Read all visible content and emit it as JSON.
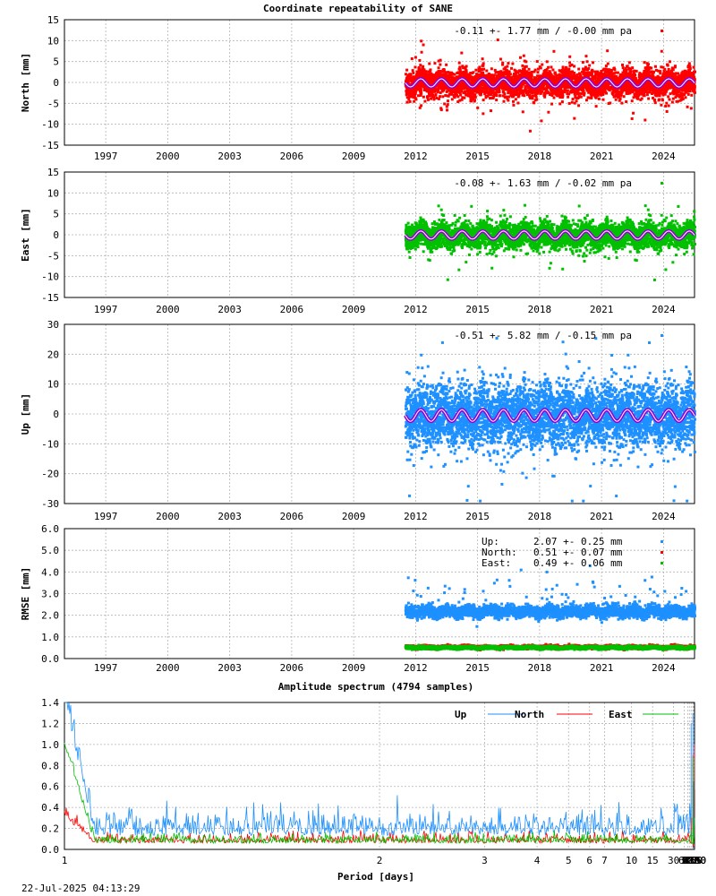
{
  "title": "Coordinate repeatability of SANE",
  "footer_timestamp": "22-Jul-2025 04:13:29",
  "colors": {
    "north": "#ff0000",
    "east": "#00c000",
    "up": "#1e90ff",
    "model": "#9400d3",
    "grid": "#b4b4b4"
  },
  "chart_data": [
    {
      "id": "north",
      "type": "scatter",
      "ylabel": "North [mm]",
      "annotation": "-0.11 +- 1.77 mm / -0.00 mm pa",
      "xlim": [
        1995,
        2025.5
      ],
      "x_ticks": [
        1997,
        2000,
        2003,
        2006,
        2009,
        2012,
        2015,
        2018,
        2021,
        2024
      ],
      "ylim": [
        -15,
        15
      ],
      "y_ticks": [
        -15,
        -10,
        -5,
        0,
        5,
        10,
        15
      ],
      "data_start": 2011.5,
      "data_end": 2025.5,
      "mean": -0.11,
      "spread": 1.77,
      "annual_amplitude": 0.8,
      "grid": true
    },
    {
      "id": "east",
      "type": "scatter",
      "ylabel": "East [mm]",
      "annotation": "-0.08 +- 1.63 mm / -0.02 mm pa",
      "xlim": [
        1995,
        2025.5
      ],
      "x_ticks": [
        1997,
        2000,
        2003,
        2006,
        2009,
        2012,
        2015,
        2018,
        2021,
        2024
      ],
      "ylim": [
        -15,
        15
      ],
      "y_ticks": [
        -15,
        -10,
        -5,
        0,
        5,
        10,
        15
      ],
      "data_start": 2011.5,
      "data_end": 2025.5,
      "mean": -0.08,
      "spread": 1.63,
      "annual_amplitude": 0.8,
      "grid": true
    },
    {
      "id": "up",
      "type": "scatter",
      "ylabel": "Up [mm]",
      "annotation": "-0.51 +- 5.82 mm / -0.15 mm pa",
      "xlim": [
        1995,
        2025.5
      ],
      "x_ticks": [
        1997,
        2000,
        2003,
        2006,
        2009,
        2012,
        2015,
        2018,
        2021,
        2024
      ],
      "ylim": [
        -30,
        30
      ],
      "y_ticks": [
        -30,
        -20,
        -10,
        0,
        10,
        20,
        30
      ],
      "data_start": 2011.5,
      "data_end": 2025.5,
      "mean": -0.51,
      "spread": 5.82,
      "annual_amplitude": 1.6,
      "grid": true
    },
    {
      "id": "rmse",
      "type": "scatter",
      "ylabel": "RMSE [mm]",
      "xlim": [
        1995,
        2025.5
      ],
      "x_ticks": [
        1997,
        2000,
        2003,
        2006,
        2009,
        2012,
        2015,
        2018,
        2021,
        2024
      ],
      "ylim": [
        0,
        6
      ],
      "y_ticks": [
        "0.0",
        "1.0",
        "2.0",
        "3.0",
        "4.0",
        "5.0",
        "6.0"
      ],
      "legend": [
        {
          "name": "Up:",
          "value": "2.07 +- 0.25 mm",
          "mean": 2.07,
          "spread": 0.25
        },
        {
          "name": "North:",
          "value": "0.51 +- 0.07 mm",
          "mean": 0.51,
          "spread": 0.07
        },
        {
          "name": "East:",
          "value": "0.49 +- 0.06 mm",
          "mean": 0.49,
          "spread": 0.06
        }
      ],
      "grid": true
    },
    {
      "id": "spectrum",
      "type": "line",
      "title": "Amplitude spectrum (4794 samples)",
      "xlabel": "Period [days]",
      "x_scale": "reciprocal",
      "x_ticks": [
        1,
        2,
        3,
        4,
        5,
        6,
        7,
        10,
        15,
        30,
        61,
        91,
        122,
        183,
        365,
        730,
        2190,
        4380,
        8760
      ],
      "ylim": [
        0,
        1.4
      ],
      "y_ticks": [
        "0.0",
        "0.2",
        "0.4",
        "0.6",
        "0.8",
        "1.0",
        "1.2",
        "1.4"
      ],
      "series": [
        {
          "name": "Up",
          "peaks": [
            [
              1,
              1.4
            ],
            [
              183,
              1.2
            ],
            [
              365,
              1.3
            ]
          ],
          "tail": [
            [
              300,
              0.3
            ],
            [
              420,
              0.0
            ],
            [
              560,
              0.35
            ],
            [
              730,
              0.65
            ],
            [
              1000,
              0.18
            ],
            [
              1500,
              0.55
            ],
            [
              2190,
              0.95
            ],
            [
              3000,
              0.75
            ],
            [
              4380,
              0.65
            ],
            [
              5800,
              0.57
            ]
          ]
        },
        {
          "name": "North",
          "peaks": [
            [
              1,
              0.3
            ],
            [
              183,
              0.3
            ],
            [
              365,
              0.9
            ]
          ],
          "tail": [
            [
              420,
              0.02
            ],
            [
              730,
              0.1
            ],
            [
              1000,
              0.1
            ],
            [
              1500,
              0.2
            ],
            [
              2190,
              0.15
            ],
            [
              3000,
              0.13
            ],
            [
              4380,
              0.6
            ],
            [
              5800,
              1.0
            ]
          ]
        },
        {
          "name": "East",
          "peaks": [
            [
              1,
              1.0
            ],
            [
              183,
              0.18
            ],
            [
              365,
              0.88
            ]
          ],
          "tail": [
            [
              420,
              0.05
            ],
            [
              730,
              0.1
            ],
            [
              1000,
              0.12
            ],
            [
              1500,
              0.22
            ],
            [
              2190,
              0.24
            ],
            [
              3000,
              0.26
            ],
            [
              4380,
              0.28
            ],
            [
              5800,
              0.3
            ]
          ]
        }
      ],
      "grid": true
    }
  ]
}
